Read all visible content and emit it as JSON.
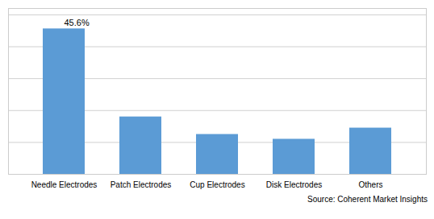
{
  "chart_data": {
    "type": "bar",
    "categories": [
      "Needle Electrodes",
      "Patch Electrodes",
      "Cup Electrodes",
      "Disk Electrodes",
      "Others"
    ],
    "values": [
      45.6,
      18.0,
      12.5,
      11.0,
      14.5
    ],
    "color": "#5B9BD5",
    "ylim": [
      0,
      52
    ],
    "yticks": [
      0,
      10,
      20,
      30,
      40,
      50
    ],
    "grid": true,
    "tick_labels": "x",
    "annotations": [
      {
        "text": "45.6%",
        "x": "Needle Electrodes",
        "y": 45.6
      }
    ],
    "caption": "Source: Coherent Market Insights"
  }
}
